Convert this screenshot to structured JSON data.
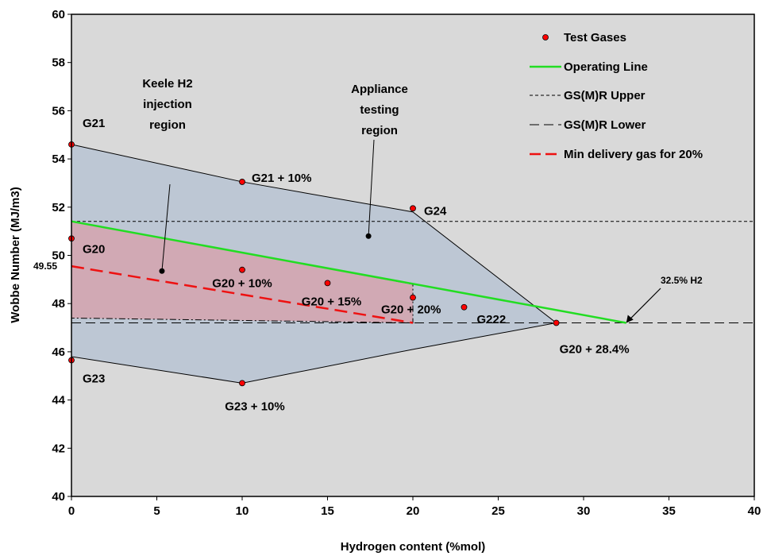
{
  "chart_data": {
    "type": "scatter",
    "xlabel": "Hydrogen content (%mol)",
    "ylabel": "Wobbe Number (MJ/m3)",
    "xlim": [
      0,
      40
    ],
    "ylim": [
      40,
      60
    ],
    "xticks": [
      0,
      5,
      10,
      15,
      20,
      25,
      30,
      35,
      40
    ],
    "yticks": [
      40,
      42,
      44,
      46,
      48,
      50,
      52,
      54,
      56,
      58,
      60
    ],
    "grid": false,
    "legend_position": "top-right",
    "legend": [
      {
        "key": "test_gases",
        "label": "Test Gases",
        "color": "#ff0000"
      },
      {
        "key": "operating_line",
        "label": "Operating Line",
        "color": "#00dd00"
      },
      {
        "key": "gsmr_upper",
        "label": "GS(M)R Upper",
        "color": "#000000"
      },
      {
        "key": "gsmr_lower",
        "label": "GS(M)R Lower",
        "color": "#000000"
      },
      {
        "key": "min_delivery",
        "label": "Min delivery gas for 20%",
        "color": "#ee1111"
      }
    ],
    "test_gases": [
      {
        "name": "G21",
        "x": 0,
        "y": 54.6
      },
      {
        "name": "G20",
        "x": 0,
        "y": 50.7
      },
      {
        "name": "G23",
        "x": 0,
        "y": 45.65
      },
      {
        "name": "G21 + 10%",
        "x": 10,
        "y": 53.05
      },
      {
        "name": "G20 + 10%",
        "x": 10,
        "y": 49.4
      },
      {
        "name": "G23 + 10%",
        "x": 10,
        "y": 44.7
      },
      {
        "name": "G20 + 15%",
        "x": 15,
        "y": 48.85
      },
      {
        "name": "G24",
        "x": 20,
        "y": 51.95
      },
      {
        "name": "G20 + 20%",
        "x": 20,
        "y": 48.25
      },
      {
        "name": "G222",
        "x": 23,
        "y": 47.85
      },
      {
        "name": "G20 + 28.4%",
        "x": 28.4,
        "y": 47.2
      }
    ],
    "operating_line": [
      [
        0,
        51.41
      ],
      [
        32.5,
        47.2
      ]
    ],
    "gsmr_upper": 51.41,
    "gsmr_lower": 47.2,
    "min_delivery": [
      [
        0,
        49.55
      ],
      [
        20,
        47.2
      ]
    ],
    "appliance_region": [
      [
        0,
        54.6
      ],
      [
        10,
        53.05
      ],
      [
        20,
        51.8
      ],
      [
        28.4,
        47.2
      ],
      [
        20,
        46.1
      ],
      [
        10,
        44.7
      ],
      [
        0,
        45.8
      ]
    ],
    "keele_region": [
      [
        0,
        51.41
      ],
      [
        20,
        48.8
      ],
      [
        20,
        47.2
      ],
      [
        0,
        47.4
      ]
    ],
    "annotations": [
      {
        "key": "keele",
        "lines": [
          "Keele H2",
          "injection",
          "region"
        ],
        "point": [
          5.3,
          49.35
        ]
      },
      {
        "key": "appliance",
        "lines": [
          "Appliance",
          "testing",
          "region"
        ],
        "point": [
          17.4,
          50.8
        ]
      },
      {
        "key": "h2limit",
        "text": "32.5% H2",
        "point": [
          32.5,
          47.2
        ]
      },
      {
        "key": "y4955",
        "text": "49.55"
      }
    ]
  }
}
